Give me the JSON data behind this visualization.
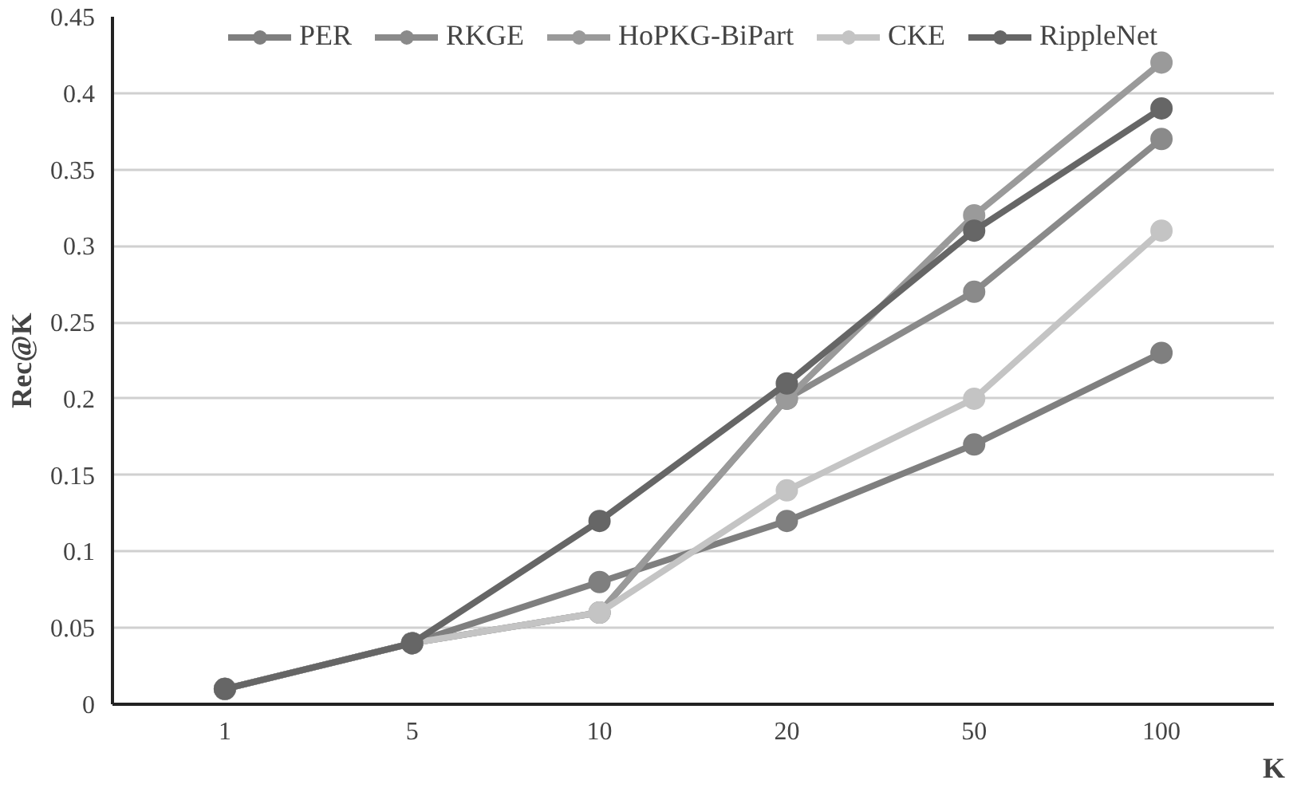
{
  "chart_data": {
    "type": "line",
    "xlabel": "K",
    "ylabel": "Rec@K",
    "categories": [
      "1",
      "5",
      "10",
      "20",
      "50",
      "100"
    ],
    "series": [
      {
        "name": "PER",
        "color": "#7f7f7f",
        "values": [
          0.01,
          0.04,
          0.08,
          0.12,
          0.17,
          0.23
        ]
      },
      {
        "name": "RKGE",
        "color": "#8a8a8a",
        "values": [
          0.01,
          0.04,
          0.06,
          0.2,
          0.27,
          0.37
        ]
      },
      {
        "name": "HoPKG-BiPart",
        "color": "#9a9a9a",
        "values": [
          0.01,
          0.04,
          0.06,
          0.2,
          0.32,
          0.42
        ]
      },
      {
        "name": "CKE",
        "color": "#c4c4c4",
        "values": [
          0.01,
          0.04,
          0.06,
          0.14,
          0.2,
          0.31
        ]
      },
      {
        "name": "RippleNet",
        "color": "#666666",
        "values": [
          0.01,
          0.04,
          0.12,
          0.21,
          0.31,
          0.39
        ]
      }
    ],
    "ylim": [
      0,
      0.45
    ],
    "yticks": [
      0,
      0.05,
      0.1,
      0.15,
      0.2,
      0.25,
      0.3,
      0.35,
      0.4,
      0.45
    ],
    "grid": "y",
    "legend": "top",
    "marker": "circle",
    "line_style": "solid"
  }
}
